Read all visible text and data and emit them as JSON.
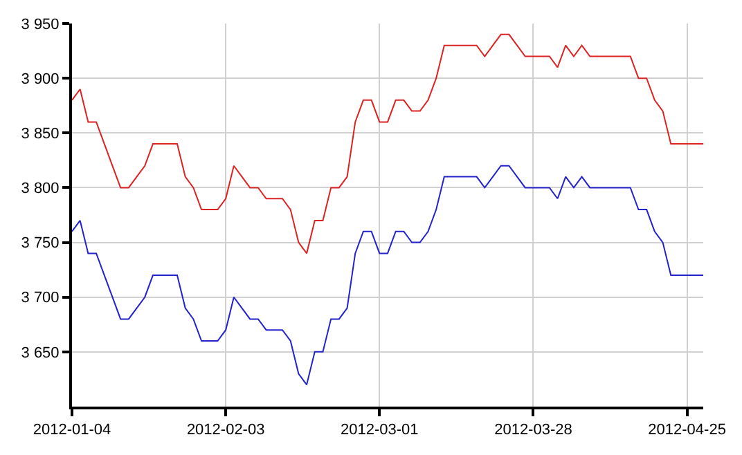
{
  "chart_data": {
    "type": "line",
    "categories": [
      "2012-01-04",
      null,
      null,
      null,
      null,
      null,
      null,
      null,
      null,
      null,
      null,
      null,
      null,
      null,
      null,
      null,
      null,
      null,
      null,
      "2012-02-03",
      null,
      null,
      null,
      null,
      null,
      null,
      null,
      null,
      null,
      null,
      null,
      null,
      null,
      null,
      null,
      null,
      null,
      null,
      "2012-03-01",
      null,
      null,
      null,
      null,
      null,
      null,
      null,
      null,
      null,
      null,
      null,
      null,
      null,
      null,
      null,
      null,
      null,
      null,
      "2012-03-28",
      null,
      null,
      null,
      null,
      null,
      null,
      null,
      null,
      null,
      null,
      null,
      null,
      null,
      null,
      null,
      null,
      null,
      null,
      "2012-04-25",
      null,
      null
    ],
    "series": [
      {
        "color": "#dd2222",
        "values": [
          3880,
          3890,
          3860,
          3860,
          3840,
          3820,
          3800,
          3800,
          3810,
          3820,
          3840,
          3840,
          3840,
          3840,
          3810,
          3800,
          3780,
          3780,
          3780,
          3790,
          3820,
          3810,
          3800,
          3800,
          3790,
          3790,
          3790,
          3780,
          3750,
          3740,
          3770,
          3770,
          3800,
          3800,
          3810,
          3860,
          3880,
          3880,
          3860,
          3860,
          3880,
          3880,
          3870,
          3870,
          3880,
          3900,
          3930,
          3930,
          3930,
          3930,
          3930,
          3920,
          3930,
          3940,
          3940,
          3930,
          3920,
          3920,
          3920,
          3920,
          3910,
          3930,
          3920,
          3930,
          3920,
          3920,
          3920,
          3920,
          3920,
          3920,
          3900,
          3900,
          3880,
          3870,
          3840,
          3840,
          3840,
          3840,
          3840
        ]
      },
      {
        "color": "#2222cc",
        "values": [
          3760,
          3770,
          3740,
          3740,
          3720,
          3700,
          3680,
          3680,
          3690,
          3700,
          3720,
          3720,
          3720,
          3720,
          3690,
          3680,
          3660,
          3660,
          3660,
          3670,
          3700,
          3690,
          3680,
          3680,
          3670,
          3670,
          3670,
          3660,
          3630,
          3620,
          3650,
          3650,
          3680,
          3680,
          3690,
          3740,
          3760,
          3760,
          3740,
          3740,
          3760,
          3760,
          3750,
          3750,
          3760,
          3780,
          3810,
          3810,
          3810,
          3810,
          3810,
          3800,
          3810,
          3820,
          3820,
          3810,
          3800,
          3800,
          3800,
          3800,
          3790,
          3810,
          3800,
          3810,
          3800,
          3800,
          3800,
          3800,
          3800,
          3800,
          3780,
          3780,
          3760,
          3750,
          3720,
          3720,
          3720,
          3720,
          3720
        ]
      }
    ],
    "ylim": [
      3600,
      3950
    ],
    "yticks": [
      {
        "value": 3650,
        "label": "3 650"
      },
      {
        "value": 3700,
        "label": "3 700"
      },
      {
        "value": 3750,
        "label": "3 750"
      },
      {
        "value": 3800,
        "label": "3 800"
      },
      {
        "value": 3850,
        "label": "3 850"
      },
      {
        "value": 3900,
        "label": "3 900"
      },
      {
        "value": 3950,
        "label": "3 950"
      }
    ],
    "grid": true,
    "legend": false,
    "marker": "none",
    "line_style": "solid"
  }
}
